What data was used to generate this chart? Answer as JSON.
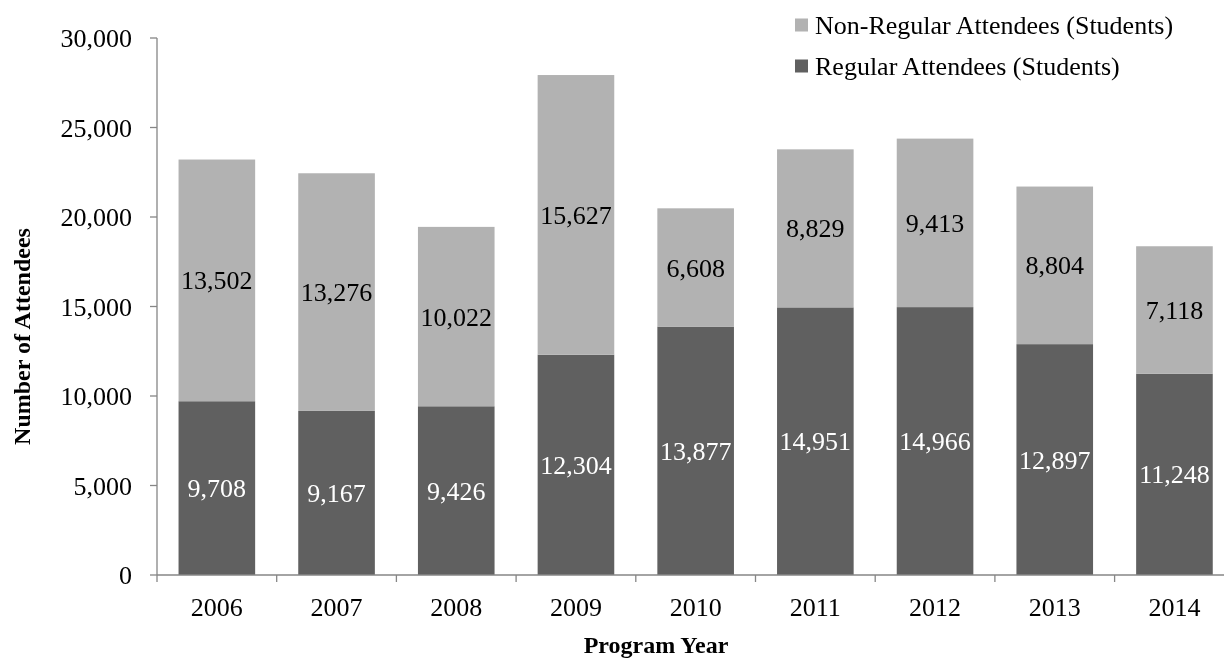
{
  "chart_data": {
    "type": "bar",
    "stacked": true,
    "xlabel": "Program Year",
    "ylabel": "Number of Attendees",
    "categories": [
      "2006",
      "2007",
      "2008",
      "2009",
      "2010",
      "2011",
      "2012",
      "2013",
      "2014"
    ],
    "series": [
      {
        "name": "Regular Attendees (Students)",
        "color": "#606060",
        "values": [
          9708,
          9167,
          9426,
          12304,
          13877,
          14951,
          14966,
          12897,
          11248
        ],
        "value_labels": [
          "9,708",
          "9,167",
          "9,426",
          "12,304",
          "13,877",
          "14,951",
          "14,966",
          "12,897",
          "11,248"
        ]
      },
      {
        "name": "Non-Regular Attendees (Students)",
        "color": "#b2b2b2",
        "values": [
          13502,
          13276,
          10022,
          15627,
          6608,
          8829,
          9413,
          8804,
          7118
        ],
        "value_labels": [
          "13,502",
          "13,276",
          "10,022",
          "15,627",
          "6,608",
          "8,829",
          "9,413",
          "8,804",
          "7,118"
        ]
      }
    ],
    "ylim": [
      0,
      30000
    ],
    "yticks": [
      0,
      {
        "value": 5000,
        "label": "5,000"
      },
      {
        "value": 10000,
        "label": "10,000"
      },
      {
        "value": 15000,
        "label": "15,000"
      },
      {
        "value": 20000,
        "label": "20,000"
      },
      {
        "value": 25000,
        "label": "25,000"
      },
      {
        "value": 30000,
        "label": "30,000"
      }
    ],
    "legend": "top right"
  }
}
